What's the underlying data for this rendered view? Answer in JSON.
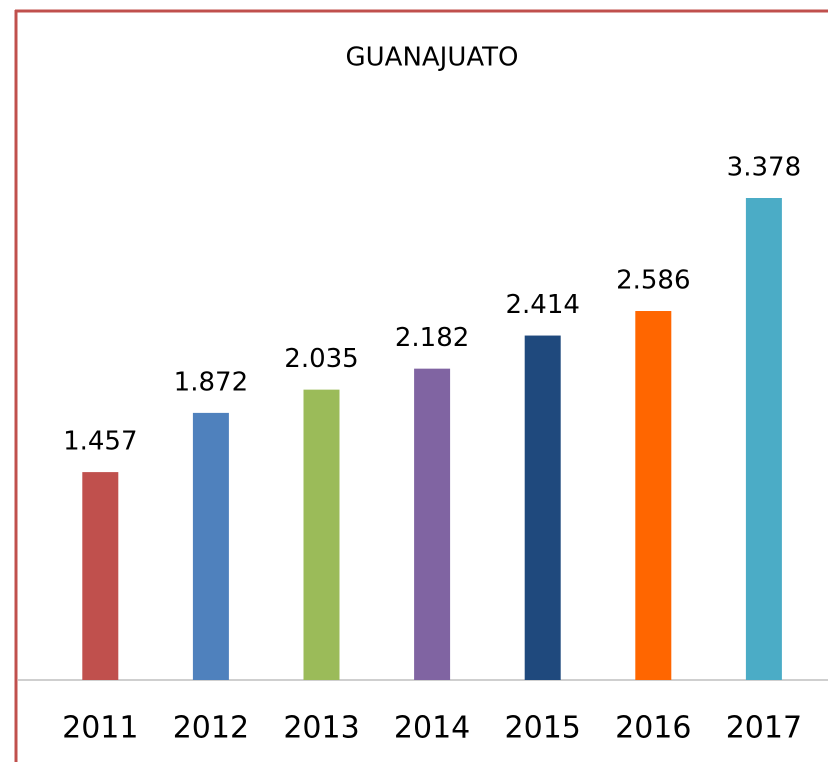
{
  "chart_data": {
    "type": "bar",
    "title": "GUANAJUATO",
    "categories": [
      "2011",
      "2012",
      "2013",
      "2014",
      "2015",
      "2016",
      "2017"
    ],
    "values": [
      1.457,
      1.872,
      2.035,
      2.182,
      2.414,
      2.586,
      3.378
    ],
    "colors": [
      "#c0504d",
      "#4f81bd",
      "#9bbb59",
      "#8064a2",
      "#1f497d",
      "#ff6600",
      "#4bacc6"
    ]
  }
}
